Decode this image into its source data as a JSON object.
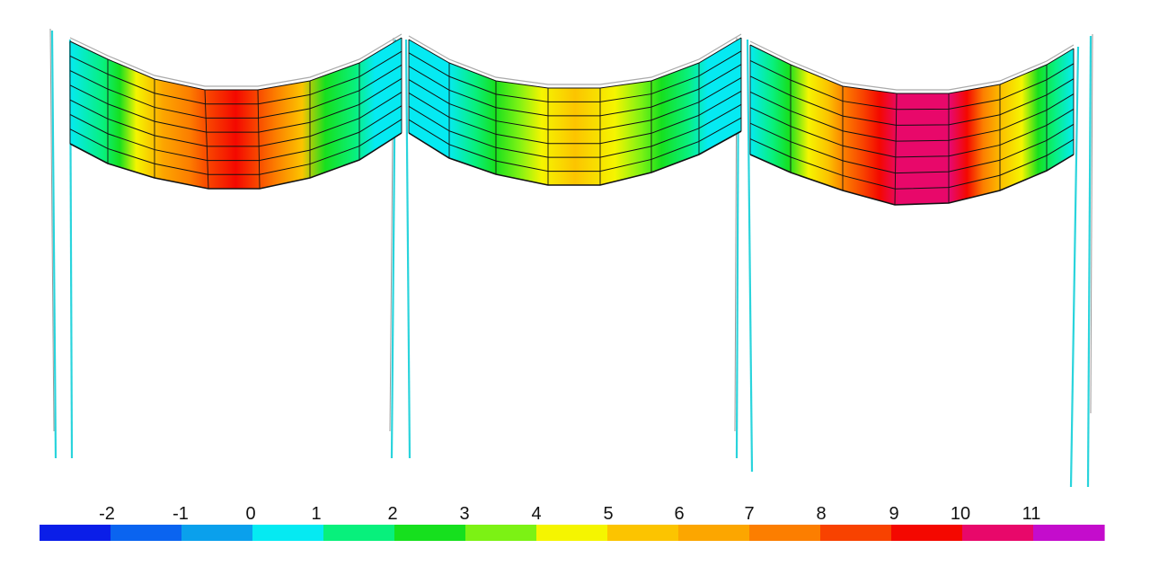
{
  "colorbar": {
    "ticks": [
      {
        "value": -2,
        "label": "-2"
      },
      {
        "value": -1,
        "label": "-1"
      },
      {
        "value": 0,
        "label": "0"
      },
      {
        "value": 1,
        "label": "1"
      },
      {
        "value": 2,
        "label": "2"
      },
      {
        "value": 3,
        "label": "3"
      },
      {
        "value": 4,
        "label": "4"
      },
      {
        "value": 5,
        "label": "5"
      },
      {
        "value": 6,
        "label": "6"
      },
      {
        "value": 7,
        "label": "7"
      },
      {
        "value": 8,
        "label": "8"
      },
      {
        "value": 9,
        "label": "9"
      },
      {
        "value": 10,
        "label": "10"
      },
      {
        "value": 11,
        "label": "11"
      }
    ],
    "colors": [
      "#0a1ee8",
      "#0a64f0",
      "#0aa0ec",
      "#05eaf2",
      "#08f07c",
      "#16e01e",
      "#7cf214",
      "#f5f500",
      "#fcc400",
      "#fca600",
      "#fc7e00",
      "#f84200",
      "#f40800",
      "#e8086a",
      "#c40ccc"
    ]
  },
  "structure": {
    "frame_color": "#2ad4dc",
    "outline_color": "#9a9a9a",
    "mesh_color": "#111111"
  }
}
